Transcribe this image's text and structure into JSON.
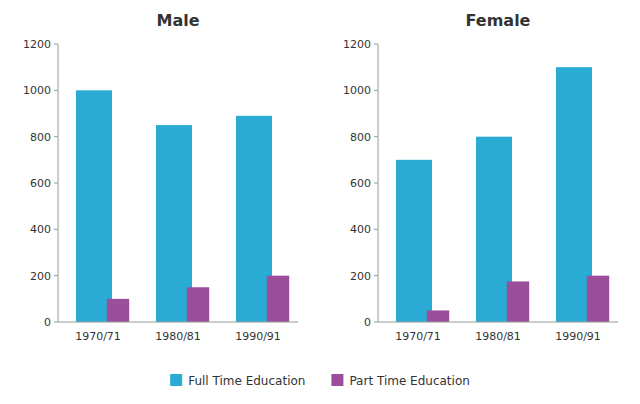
{
  "chart_data": [
    {
      "type": "bar",
      "title": "Male",
      "categories": [
        "1970/71",
        "1980/81",
        "1990/91"
      ],
      "series": [
        {
          "name": "Full Time Education",
          "color": "#29ABD4",
          "values": [
            1000,
            850,
            890
          ]
        },
        {
          "name": "Part Time Education",
          "color": "#9B4F9B",
          "values": [
            100,
            150,
            200
          ]
        }
      ],
      "ylim": [
        0,
        1200
      ],
      "yticks": [
        0,
        200,
        400,
        600,
        800,
        1000,
        1200
      ],
      "grid": false,
      "legend": "bottom"
    },
    {
      "type": "bar",
      "title": "Female",
      "categories": [
        "1970/71",
        "1980/81",
        "1990/91"
      ],
      "series": [
        {
          "name": "Full Time Education",
          "color": "#29ABD4",
          "values": [
            700,
            800,
            1100
          ]
        },
        {
          "name": "Part Time Education",
          "color": "#9B4F9B",
          "values": [
            50,
            175,
            200
          ]
        }
      ],
      "ylim": [
        0,
        1200
      ],
      "yticks": [
        0,
        200,
        400,
        600,
        800,
        1000,
        1200
      ],
      "grid": false
    }
  ]
}
